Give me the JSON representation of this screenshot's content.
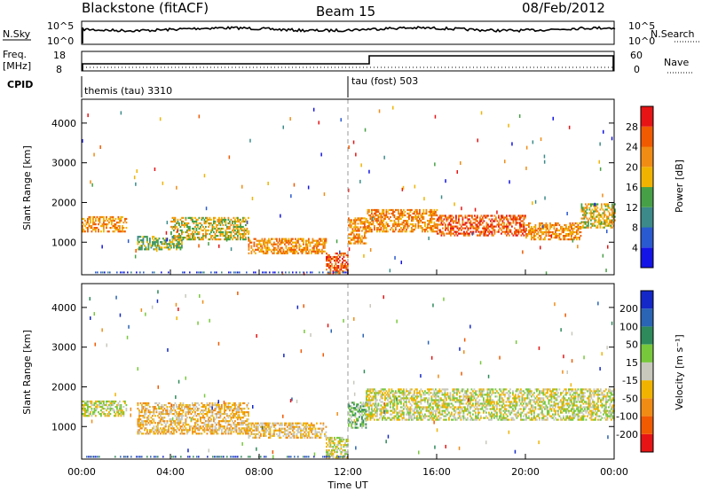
{
  "header": {
    "station": "Blackstone (fitACF)",
    "beam": "Beam 15",
    "date": "08/Feb/2012"
  },
  "noise_panel": {
    "left_label": "N.Sky",
    "left_ticks": [
      "10^5",
      "10^0"
    ],
    "right_label": "N.Search",
    "right_ticks": [
      "10^5",
      "10^0"
    ]
  },
  "freq_panel": {
    "left_label_1": "Freq.",
    "left_label_2": "[MHz]",
    "left_ticks": [
      "18",
      "8"
    ],
    "right_label": "Nave",
    "right_ticks": [
      "60",
      "0"
    ]
  },
  "cpid": {
    "label": "CPID",
    "modes": [
      {
        "name": "themis (tau) 3310",
        "start_ut": 0
      },
      {
        "name": "tau (fost) 503",
        "start_ut": 12
      }
    ]
  },
  "chart_data": [
    {
      "type": "heatmap",
      "title": "",
      "xlabel": "Time UT",
      "ylabel": "Slant Range [km]",
      "xlim": [
        0,
        24
      ],
      "ylim": [
        180,
        4600
      ],
      "x_ticks": [
        "00:00",
        "04:00",
        "08:00",
        "12:00",
        "16:00",
        "20:00",
        "00:00"
      ],
      "y_ticks": [
        1000,
        2000,
        3000,
        4000
      ],
      "colorbar": {
        "label": "Power [dB]",
        "ticks": [
          "4",
          "8",
          "12",
          "16",
          "20",
          "24",
          "28"
        ],
        "colors": [
          "#1414e6",
          "#2a5ad0",
          "#3c8a8a",
          "#46a046",
          "#f0b400",
          "#f08c14",
          "#f05a00",
          "#e61414"
        ]
      },
      "bands": [
        {
          "t": [
            0.0,
            2.0
          ],
          "range": [
            1250,
            1650
          ],
          "level": 5
        },
        {
          "t": [
            2.5,
            4.5
          ],
          "range": [
            800,
            1150
          ],
          "level": 3
        },
        {
          "t": [
            4.0,
            7.5
          ],
          "range": [
            1050,
            1600
          ],
          "level": 4
        },
        {
          "t": [
            7.5,
            11.0
          ],
          "range": [
            700,
            1100
          ],
          "level": 5
        },
        {
          "t": [
            11.0,
            12.0
          ],
          "range": [
            200,
            700
          ],
          "level": 6
        },
        {
          "t": [
            12.0,
            12.8
          ],
          "range": [
            950,
            1600
          ],
          "level": 5
        },
        {
          "t": [
            12.8,
            16.0
          ],
          "range": [
            1250,
            1800
          ],
          "level": 5
        },
        {
          "t": [
            16.0,
            20.0
          ],
          "range": [
            1150,
            1650
          ],
          "level": 6
        },
        {
          "t": [
            20.0,
            22.5
          ],
          "range": [
            1050,
            1500
          ],
          "level": 5
        },
        {
          "t": [
            22.5,
            24.0
          ],
          "range": [
            1350,
            1950
          ],
          "level": 4
        }
      ]
    },
    {
      "type": "heatmap",
      "title": "",
      "xlabel": "Time UT",
      "ylabel": "Slant Range [km]",
      "xlim": [
        0,
        24
      ],
      "ylim": [
        180,
        4600
      ],
      "x_ticks": [
        "00:00",
        "04:00",
        "08:00",
        "12:00",
        "16:00",
        "20:00",
        "00:00"
      ],
      "y_ticks": [
        1000,
        2000,
        3000,
        4000
      ],
      "colorbar": {
        "label": "Velocity [m s⁻¹]",
        "ticks": [
          "200",
          "100",
          "50",
          "15",
          "-15",
          "-50",
          "-100",
          "-200"
        ],
        "colors": [
          "#1428c8",
          "#2a64b4",
          "#2e8a5a",
          "#78c83c",
          "#c8c8bc",
          "#f0b400",
          "#f08c14",
          "#f05a00",
          "#e61414"
        ]
      },
      "bands": [
        {
          "t": [
            0.0,
            2.0
          ],
          "range": [
            1250,
            1650
          ],
          "level": 4
        },
        {
          "t": [
            2.5,
            7.5
          ],
          "range": [
            800,
            1600
          ],
          "level": 5
        },
        {
          "t": [
            7.5,
            11.0
          ],
          "range": [
            700,
            1100
          ],
          "level": 5
        },
        {
          "t": [
            11.0,
            12.0
          ],
          "range": [
            200,
            700
          ],
          "level": 4
        },
        {
          "t": [
            12.0,
            12.8
          ],
          "range": [
            950,
            1600
          ],
          "level": 3
        },
        {
          "t": [
            12.8,
            24.0
          ],
          "range": [
            1150,
            1950
          ],
          "level": 4
        }
      ]
    }
  ]
}
